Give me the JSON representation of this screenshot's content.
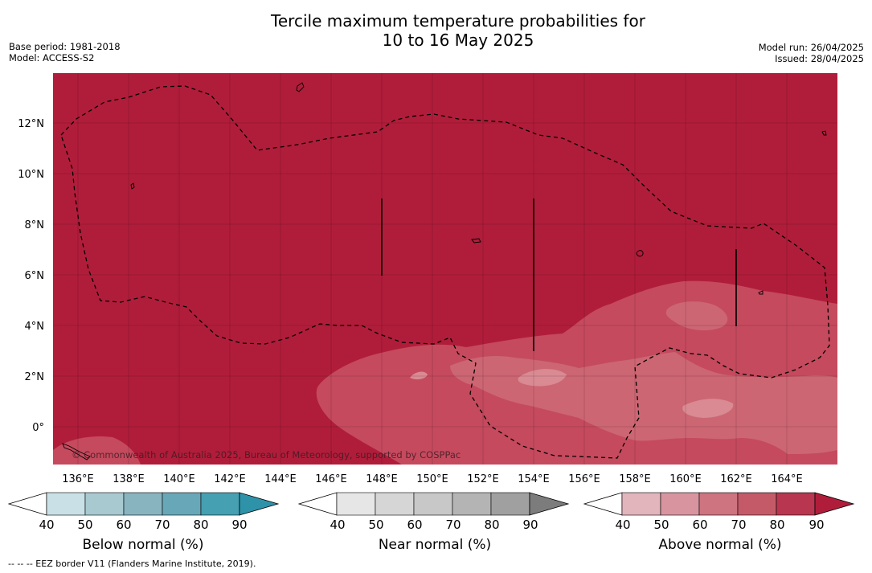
{
  "header": {
    "title_line1": "Tercile maximum temperature probabilities for",
    "title_line2": "10 to 16 May 2025",
    "base_period": "Base period: 1981-2018",
    "model": "Model: ACCESS-S2",
    "model_run": "Model run: 26/04/2025",
    "issued": "Issued: 28/04/2025"
  },
  "map": {
    "lat_labels": [
      "12°N",
      "10°N",
      "8°N",
      "6°N",
      "4°N",
      "2°N",
      "0°"
    ],
    "lon_labels": [
      "136°E",
      "138°E",
      "140°E",
      "142°E",
      "144°E",
      "146°E",
      "148°E",
      "150°E",
      "152°E",
      "154°E",
      "156°E",
      "158°E",
      "160°E",
      "162°E",
      "164°E"
    ],
    "copyright": "© Commonwealth of Australia 2025, Bureau of Meteorology, supported by COSPPac",
    "colors": {
      "above_90": "#b01d3a",
      "above_70": "#c54a5e",
      "above_60": "#cc6673",
      "above_50": "#d98a93"
    }
  },
  "legend": {
    "ticks": [
      "40",
      "50",
      "60",
      "70",
      "80",
      "90"
    ],
    "below": {
      "label": "Below normal (%)",
      "colors": [
        "#c8e0e6",
        "#a8c9d0",
        "#88b4bf",
        "#68a7b7",
        "#45a0b2",
        "#2e93a8"
      ]
    },
    "near": {
      "label": "Near normal (%)",
      "colors": [
        "#e6e6e6",
        "#d6d6d6",
        "#c8c8c8",
        "#b4b4b4",
        "#a0a0a0",
        "#7c7c7c"
      ]
    },
    "above": {
      "label": "Above normal (%)",
      "colors": [
        "#e2b4bc",
        "#d8959f",
        "#cd7480",
        "#c45a68",
        "#b83650",
        "#b01d3a"
      ]
    }
  },
  "footnote": "--  --  -- EEZ border V11 (Flanders Marine Institute, 2019)."
}
